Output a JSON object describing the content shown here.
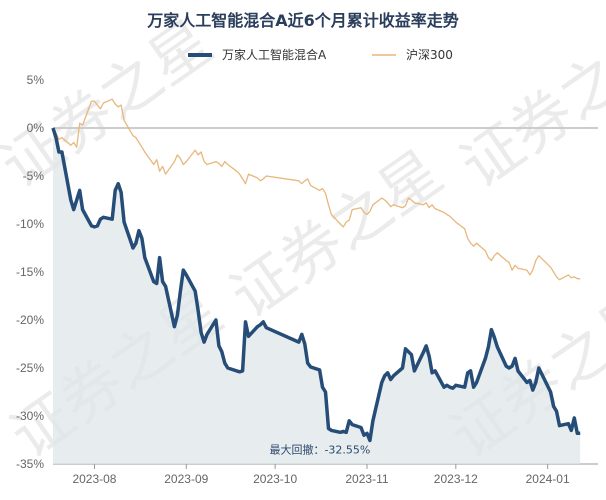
{
  "chart_data": {
    "type": "line",
    "title": "万家人工智能混合A近6个月累计收益率走势",
    "legend_position": "top",
    "y_unit": "%",
    "ylim": [
      -35,
      5
    ],
    "y_ticks": [
      "5%",
      "0%",
      "-5%",
      "-10%",
      "-15%",
      "-20%",
      "-25%",
      "-30%",
      "-35%"
    ],
    "x_ticks": [
      "2023-08",
      "2023-09",
      "2023-10",
      "2023-11",
      "2023-12",
      "2024-01"
    ],
    "xlim": [
      "2023-07-18",
      "2024-01-18"
    ],
    "watermark": "证券之星",
    "annotation": {
      "text": "最大回撤：-32.55%",
      "date": "2023-11-02",
      "value": -32.55
    },
    "series": [
      {
        "name": "万家人工智能混合A",
        "color": "#264d78",
        "area_fill": true,
        "points": [
          [
            "2023-07-18",
            0
          ],
          [
            "2023-07-19",
            -1
          ],
          [
            "2023-07-20",
            -2.5
          ],
          [
            "2023-07-21",
            -2.5
          ],
          [
            "2023-07-24",
            -7.5
          ],
          [
            "2023-07-25",
            -8.5
          ],
          [
            "2023-07-26",
            -7.5
          ],
          [
            "2023-07-27",
            -6.5
          ],
          [
            "2023-07-28",
            -8.5
          ],
          [
            "2023-07-31",
            -10.2
          ],
          [
            "2023-08-01",
            -10.3
          ],
          [
            "2023-08-02",
            -10.2
          ],
          [
            "2023-08-03",
            -9.5
          ],
          [
            "2023-08-04",
            -9.3
          ],
          [
            "2023-08-07",
            -9.5
          ],
          [
            "2023-08-08",
            -6.5
          ],
          [
            "2023-08-09",
            -5.8
          ],
          [
            "2023-08-10",
            -6.7
          ],
          [
            "2023-08-11",
            -9.8
          ],
          [
            "2023-08-14",
            -12.5
          ],
          [
            "2023-08-15",
            -12.0
          ],
          [
            "2023-08-16",
            -10.7
          ],
          [
            "2023-08-17",
            -11.5
          ],
          [
            "2023-08-18",
            -13.5
          ],
          [
            "2023-08-21",
            -16.0
          ],
          [
            "2023-08-22",
            -16.2
          ],
          [
            "2023-08-23",
            -13.5
          ],
          [
            "2023-08-24",
            -16.0
          ],
          [
            "2023-08-25",
            -16.5
          ],
          [
            "2023-08-28",
            -20.7
          ],
          [
            "2023-08-29",
            -19.5
          ],
          [
            "2023-08-30",
            -17.0
          ],
          [
            "2023-08-31",
            -14.8
          ],
          [
            "2023-09-01",
            -15.3
          ],
          [
            "2023-09-04",
            -17.0
          ],
          [
            "2023-09-05",
            -19.0
          ],
          [
            "2023-09-06",
            -21.3
          ],
          [
            "2023-09-07",
            -22.3
          ],
          [
            "2023-09-08",
            -21.5
          ],
          [
            "2023-09-11",
            -20.0
          ],
          [
            "2023-09-12",
            -22.7
          ],
          [
            "2023-09-13",
            -23.3
          ],
          [
            "2023-09-14",
            -24.5
          ],
          [
            "2023-09-15",
            -25.0
          ],
          [
            "2023-09-18",
            -25.3
          ],
          [
            "2023-09-19",
            -25.4
          ],
          [
            "2023-09-20",
            -25.3
          ],
          [
            "2023-09-21",
            -20.2
          ],
          [
            "2023-09-22",
            -21.7
          ],
          [
            "2023-09-25",
            -20.7
          ],
          [
            "2023-09-26",
            -20.5
          ],
          [
            "2023-09-27",
            -20.2
          ],
          [
            "2023-09-28",
            -20.8
          ],
          [
            "2023-10-09",
            -22.3
          ],
          [
            "2023-10-10",
            -21.5
          ],
          [
            "2023-10-11",
            -22.5
          ],
          [
            "2023-10-12",
            -24.5
          ],
          [
            "2023-10-13",
            -24.9
          ],
          [
            "2023-10-16",
            -25.2
          ],
          [
            "2023-10-17",
            -27.0
          ],
          [
            "2023-10-18",
            -27.5
          ],
          [
            "2023-10-19",
            -31.3
          ],
          [
            "2023-10-20",
            -31.5
          ],
          [
            "2023-10-23",
            -31.7
          ],
          [
            "2023-10-24",
            -31.6
          ],
          [
            "2023-10-25",
            -31.7
          ],
          [
            "2023-10-26",
            -30.5
          ],
          [
            "2023-10-27",
            -30.9
          ],
          [
            "2023-10-30",
            -31.2
          ],
          [
            "2023-10-31",
            -32.0
          ],
          [
            "2023-11-01",
            -31.8
          ],
          [
            "2023-11-02",
            -32.55
          ],
          [
            "2023-11-03",
            -30.5
          ],
          [
            "2023-11-06",
            -26.5
          ],
          [
            "2023-11-07",
            -25.8
          ],
          [
            "2023-11-08",
            -25.5
          ],
          [
            "2023-11-09",
            -26.2
          ],
          [
            "2023-11-10",
            -25.8
          ],
          [
            "2023-11-13",
            -25.0
          ],
          [
            "2023-11-14",
            -23.0
          ],
          [
            "2023-11-15",
            -23.3
          ],
          [
            "2023-11-16",
            -23.6
          ],
          [
            "2023-11-17",
            -25.3
          ],
          [
            "2023-11-20",
            -23.4
          ],
          [
            "2023-11-21",
            -22.7
          ],
          [
            "2023-11-22",
            -23.8
          ],
          [
            "2023-11-23",
            -25.5
          ],
          [
            "2023-11-24",
            -25.3
          ],
          [
            "2023-11-27",
            -27.0
          ],
          [
            "2023-11-28",
            -26.8
          ],
          [
            "2023-11-29",
            -27.0
          ],
          [
            "2023-11-30",
            -27.1
          ],
          [
            "2023-12-01",
            -26.8
          ],
          [
            "2023-12-04",
            -27.0
          ],
          [
            "2023-12-05",
            -25.5
          ],
          [
            "2023-12-06",
            -25.3
          ],
          [
            "2023-12-07",
            -27.0
          ],
          [
            "2023-12-08",
            -26.5
          ],
          [
            "2023-12-11",
            -24.0
          ],
          [
            "2023-12-12",
            -22.8
          ],
          [
            "2023-12-13",
            -21.0
          ],
          [
            "2023-12-14",
            -21.8
          ],
          [
            "2023-12-15",
            -22.8
          ],
          [
            "2023-12-18",
            -24.8
          ],
          [
            "2023-12-19",
            -25.0
          ],
          [
            "2023-12-20",
            -24.8
          ],
          [
            "2023-12-21",
            -24.0
          ],
          [
            "2023-12-22",
            -25.3
          ],
          [
            "2023-12-25",
            -26.5
          ],
          [
            "2023-12-26",
            -26.3
          ],
          [
            "2023-12-27",
            -27.3
          ],
          [
            "2023-12-28",
            -26.5
          ],
          [
            "2023-12-29",
            -25.0
          ],
          [
            "2024-01-02",
            -27.5
          ],
          [
            "2024-01-03",
            -29.0
          ],
          [
            "2024-01-04",
            -29.5
          ],
          [
            "2024-01-05",
            -31.0
          ],
          [
            "2024-01-08",
            -30.8
          ],
          [
            "2024-01-09",
            -31.5
          ],
          [
            "2024-01-10",
            -30.2
          ],
          [
            "2024-01-11",
            -31.8
          ],
          [
            "2024-01-12",
            -31.8
          ]
        ]
      },
      {
        "name": "沪深300",
        "color": "#e8b77d",
        "area_fill": false,
        "points": [
          [
            "2023-07-18",
            0
          ],
          [
            "2023-07-19",
            -0.5
          ],
          [
            "2023-07-20",
            -1.2
          ],
          [
            "2023-07-21",
            -1.0
          ],
          [
            "2023-07-24",
            -1.8
          ],
          [
            "2023-07-25",
            -1.5
          ],
          [
            "2023-07-26",
            -2.0
          ],
          [
            "2023-07-27",
            0.5
          ],
          [
            "2023-07-28",
            0.3
          ],
          [
            "2023-07-31",
            2.8
          ],
          [
            "2023-08-01",
            2.8
          ],
          [
            "2023-08-02",
            2.4
          ],
          [
            "2023-08-03",
            2.0
          ],
          [
            "2023-08-04",
            2.6
          ],
          [
            "2023-08-07",
            3.0
          ],
          [
            "2023-08-08",
            2.5
          ],
          [
            "2023-08-09",
            2.2
          ],
          [
            "2023-08-10",
            2.4
          ],
          [
            "2023-08-11",
            0.8
          ],
          [
            "2023-08-14",
            -0.8
          ],
          [
            "2023-08-15",
            -1.0
          ],
          [
            "2023-08-16",
            -1.5
          ],
          [
            "2023-08-17",
            -2.0
          ],
          [
            "2023-08-18",
            -2.5
          ],
          [
            "2023-08-21",
            -3.8
          ],
          [
            "2023-08-22",
            -3.3
          ],
          [
            "2023-08-23",
            -4.5
          ],
          [
            "2023-08-24",
            -4.0
          ],
          [
            "2023-08-25",
            -4.8
          ],
          [
            "2023-08-28",
            -3.5
          ],
          [
            "2023-08-29",
            -2.8
          ],
          [
            "2023-08-30",
            -3.2
          ],
          [
            "2023-08-31",
            -3.8
          ],
          [
            "2023-09-01",
            -3.5
          ],
          [
            "2023-09-04",
            -2.3
          ],
          [
            "2023-09-05",
            -2.8
          ],
          [
            "2023-09-06",
            -2.5
          ],
          [
            "2023-09-07",
            -3.5
          ],
          [
            "2023-09-08",
            -3.8
          ],
          [
            "2023-09-11",
            -3.5
          ],
          [
            "2023-09-12",
            -3.7
          ],
          [
            "2023-09-13",
            -4.0
          ],
          [
            "2023-09-14",
            -3.5
          ],
          [
            "2023-09-15",
            -3.8
          ],
          [
            "2023-09-18",
            -4.5
          ],
          [
            "2023-09-19",
            -4.8
          ],
          [
            "2023-09-20",
            -5.3
          ],
          [
            "2023-09-21",
            -5.8
          ],
          [
            "2023-09-22",
            -4.8
          ],
          [
            "2023-09-25",
            -5.2
          ],
          [
            "2023-09-26",
            -5.5
          ],
          [
            "2023-09-27",
            -5.3
          ],
          [
            "2023-09-28",
            -5.0
          ],
          [
            "2023-10-09",
            -5.5
          ],
          [
            "2023-10-10",
            -5.8
          ],
          [
            "2023-10-11",
            -5.5
          ],
          [
            "2023-10-12",
            -5.3
          ],
          [
            "2023-10-13",
            -6.0
          ],
          [
            "2023-10-16",
            -6.5
          ],
          [
            "2023-10-17",
            -6.3
          ],
          [
            "2023-10-18",
            -6.8
          ],
          [
            "2023-10-19",
            -8.0
          ],
          [
            "2023-10-20",
            -9.0
          ],
          [
            "2023-10-23",
            -10.0
          ],
          [
            "2023-10-24",
            -10.3
          ],
          [
            "2023-10-25",
            -9.8
          ],
          [
            "2023-10-26",
            -9.6
          ],
          [
            "2023-10-27",
            -8.5
          ],
          [
            "2023-10-30",
            -8.3
          ],
          [
            "2023-10-31",
            -8.8
          ],
          [
            "2023-11-01",
            -9.0
          ],
          [
            "2023-11-02",
            -8.7
          ],
          [
            "2023-11-03",
            -8.0
          ],
          [
            "2023-11-06",
            -7.3
          ],
          [
            "2023-11-07",
            -7.5
          ],
          [
            "2023-11-08",
            -7.8
          ],
          [
            "2023-11-09",
            -8.2
          ],
          [
            "2023-11-10",
            -8.0
          ],
          [
            "2023-11-13",
            -8.3
          ],
          [
            "2023-11-14",
            -8.1
          ],
          [
            "2023-11-15",
            -7.3
          ],
          [
            "2023-11-16",
            -7.5
          ],
          [
            "2023-11-17",
            -7.8
          ],
          [
            "2023-11-20",
            -8.0
          ],
          [
            "2023-11-21",
            -7.8
          ],
          [
            "2023-11-22",
            -8.3
          ],
          [
            "2023-11-23",
            -8.0
          ],
          [
            "2023-11-24",
            -8.4
          ],
          [
            "2023-11-27",
            -8.8
          ],
          [
            "2023-11-28",
            -9.0
          ],
          [
            "2023-11-29",
            -9.2
          ],
          [
            "2023-11-30",
            -9.5
          ],
          [
            "2023-12-01",
            -9.8
          ],
          [
            "2023-12-04",
            -10.5
          ],
          [
            "2023-12-05",
            -11.5
          ],
          [
            "2023-12-06",
            -12.0
          ],
          [
            "2023-12-07",
            -12.3
          ],
          [
            "2023-12-08",
            -12.0
          ],
          [
            "2023-12-11",
            -12.8
          ],
          [
            "2023-12-12",
            -13.5
          ],
          [
            "2023-12-13",
            -13.8
          ],
          [
            "2023-12-14",
            -13.3
          ],
          [
            "2023-12-15",
            -13.0
          ],
          [
            "2023-12-18",
            -13.8
          ],
          [
            "2023-12-19",
            -14.0
          ],
          [
            "2023-12-20",
            -14.8
          ],
          [
            "2023-12-21",
            -14.3
          ],
          [
            "2023-12-22",
            -14.6
          ],
          [
            "2023-12-25",
            -14.8
          ],
          [
            "2023-12-26",
            -15.3
          ],
          [
            "2023-12-27",
            -14.8
          ],
          [
            "2023-12-28",
            -13.8
          ],
          [
            "2023-12-29",
            -13.3
          ],
          [
            "2024-01-02",
            -14.5
          ],
          [
            "2024-01-03",
            -15.0
          ],
          [
            "2024-01-04",
            -15.5
          ],
          [
            "2024-01-05",
            -15.8
          ],
          [
            "2024-01-08",
            -15.3
          ],
          [
            "2024-01-09",
            -15.6
          ],
          [
            "2024-01-10",
            -15.5
          ],
          [
            "2024-01-11",
            -15.7
          ],
          [
            "2024-01-12",
            -15.7
          ]
        ]
      }
    ]
  }
}
